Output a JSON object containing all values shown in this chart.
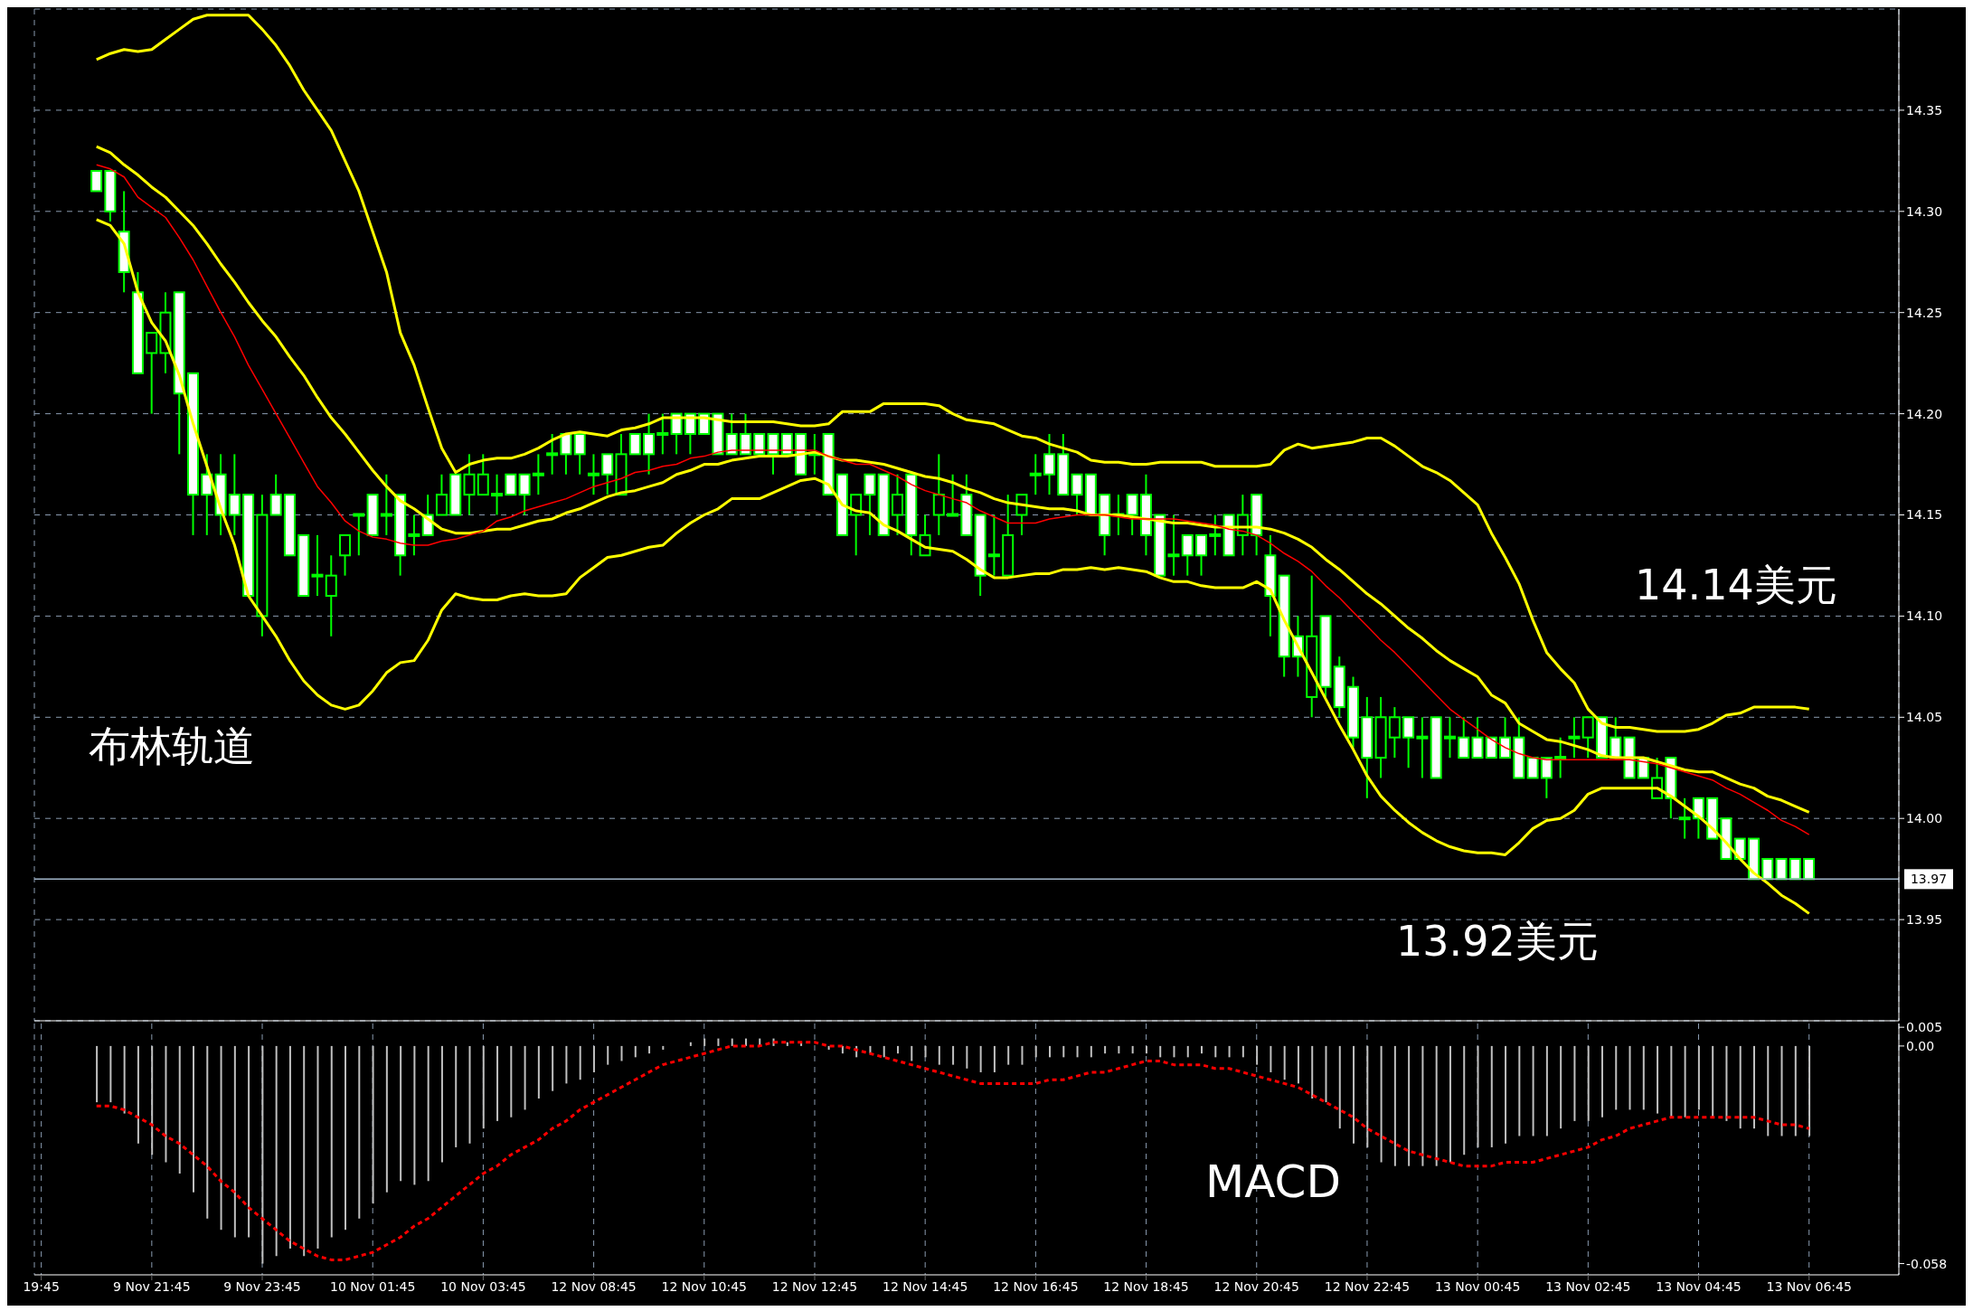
{
  "chart_data": [
    {
      "type": "candlestick",
      "categories": [
        null,
        null,
        null,
        null,
        null,
        null,
        null,
        null,
        null,
        null,
        null,
        null,
        null,
        null,
        null,
        null,
        null,
        null,
        null,
        null,
        null,
        null,
        null,
        null,
        null,
        null,
        null,
        null,
        null,
        null,
        null,
        null,
        null,
        null,
        null,
        null,
        null,
        null,
        null,
        null,
        null,
        null,
        null,
        null,
        null,
        null,
        null,
        null,
        null,
        null,
        null,
        null,
        null,
        null,
        null,
        null,
        null,
        null,
        null,
        null,
        null,
        null,
        null,
        null,
        null,
        null,
        null,
        null,
        null,
        null,
        null,
        null,
        null,
        null,
        null,
        null,
        null,
        null,
        null,
        null,
        null,
        null,
        null,
        null,
        null,
        null,
        null,
        null,
        null,
        null,
        null,
        null,
        null,
        null,
        null,
        null,
        null,
        null,
        null,
        null,
        null,
        null,
        null,
        null,
        null,
        null,
        null,
        null,
        null,
        null,
        null,
        null,
        null,
        null,
        null,
        null,
        null,
        null,
        null,
        null,
        null,
        null,
        null,
        null,
        null,
        null,
        null,
        null,
        null
      ],
      "ohlc": [
        null,
        null,
        null,
        null,
        [
          14.32,
          14.32,
          14.31,
          14.31
        ],
        [
          14.32,
          14.32,
          14.295,
          14.3
        ],
        [
          14.29,
          14.31,
          14.26,
          14.27
        ],
        [
          14.26,
          14.27,
          14.22,
          14.22
        ],
        [
          14.23,
          14.24,
          14.2,
          14.24
        ],
        [
          14.23,
          14.26,
          14.22,
          14.25
        ],
        [
          14.26,
          14.26,
          14.18,
          14.21
        ],
        [
          14.22,
          14.22,
          14.14,
          14.16
        ],
        [
          14.17,
          14.18,
          14.14,
          14.16
        ],
        [
          14.17,
          14.18,
          14.14,
          14.15
        ],
        [
          14.16,
          14.18,
          14.14,
          14.15
        ],
        [
          14.16,
          14.16,
          14.11,
          14.11
        ],
        [
          14.1,
          14.16,
          14.09,
          14.15
        ],
        [
          14.16,
          14.17,
          14.15,
          14.15
        ],
        [
          14.16,
          14.16,
          14.13,
          14.13
        ],
        [
          14.14,
          14.14,
          14.11,
          14.11
        ],
        [
          14.12,
          14.14,
          14.11,
          14.12
        ],
        [
          14.11,
          14.13,
          14.09,
          14.12
        ],
        [
          14.13,
          14.14,
          14.12,
          14.14
        ],
        [
          14.15,
          14.15,
          14.13,
          14.15
        ],
        [
          14.16,
          14.16,
          14.14,
          14.14
        ],
        [
          14.15,
          14.17,
          14.14,
          14.15
        ],
        [
          14.16,
          14.16,
          14.12,
          14.13
        ],
        [
          14.14,
          14.15,
          14.13,
          14.14
        ],
        [
          14.15,
          14.16,
          14.14,
          14.14
        ],
        [
          14.15,
          14.17,
          14.15,
          14.16
        ],
        [
          14.17,
          14.17,
          14.15,
          14.15
        ],
        [
          14.16,
          14.18,
          14.15,
          14.17
        ],
        [
          14.16,
          14.18,
          14.16,
          14.17
        ],
        [
          14.16,
          14.17,
          14.15,
          14.16
        ],
        [
          14.17,
          14.17,
          14.16,
          14.16
        ],
        [
          14.17,
          14.17,
          14.15,
          14.16
        ],
        [
          14.17,
          14.18,
          14.16,
          14.17
        ],
        [
          14.18,
          14.19,
          14.17,
          14.18
        ],
        [
          14.19,
          14.19,
          14.17,
          14.18
        ],
        [
          14.19,
          14.19,
          14.17,
          14.18
        ],
        [
          14.17,
          14.18,
          14.16,
          14.17
        ],
        [
          14.18,
          14.18,
          14.16,
          14.17
        ],
        [
          14.16,
          14.19,
          14.16,
          14.18
        ],
        [
          14.19,
          14.19,
          14.18,
          14.18
        ],
        [
          14.19,
          14.2,
          14.17,
          14.18
        ],
        [
          14.19,
          14.2,
          14.18,
          14.19
        ],
        [
          14.2,
          14.2,
          14.18,
          14.19
        ],
        [
          14.2,
          14.2,
          14.18,
          14.19
        ],
        [
          14.2,
          14.2,
          14.19,
          14.19
        ],
        [
          14.2,
          14.2,
          14.18,
          14.18
        ],
        [
          14.19,
          14.2,
          14.18,
          14.18
        ],
        [
          14.19,
          14.2,
          14.18,
          14.18
        ],
        [
          14.19,
          14.19,
          14.18,
          14.18
        ],
        [
          14.19,
          14.19,
          14.17,
          14.18
        ],
        [
          14.19,
          14.19,
          14.18,
          14.18
        ],
        [
          14.19,
          14.19,
          14.17,
          14.17
        ],
        [
          14.18,
          14.19,
          14.17,
          14.18
        ],
        [
          14.19,
          14.19,
          14.16,
          14.16
        ],
        [
          14.17,
          14.17,
          14.14,
          14.14
        ],
        [
          14.15,
          14.16,
          14.13,
          14.16
        ],
        [
          14.17,
          14.17,
          14.14,
          14.16
        ],
        [
          14.17,
          14.17,
          14.14,
          14.14
        ],
        [
          14.15,
          14.17,
          14.14,
          14.16
        ],
        [
          14.17,
          14.17,
          14.13,
          14.14
        ],
        [
          14.13,
          14.15,
          14.13,
          14.14
        ],
        [
          14.15,
          14.18,
          14.14,
          14.16
        ],
        [
          14.15,
          14.17,
          14.15,
          14.15
        ],
        [
          14.16,
          14.17,
          14.14,
          14.14
        ],
        [
          14.15,
          14.15,
          14.11,
          14.12
        ],
        [
          14.13,
          14.15,
          14.12,
          14.13
        ],
        [
          14.12,
          14.16,
          14.12,
          14.14
        ],
        [
          14.15,
          14.16,
          14.14,
          14.16
        ],
        [
          14.17,
          14.18,
          14.16,
          14.17
        ],
        [
          14.18,
          14.19,
          14.16,
          14.17
        ],
        [
          14.18,
          14.19,
          14.16,
          14.16
        ],
        [
          14.17,
          14.17,
          14.15,
          14.16
        ],
        [
          14.17,
          14.17,
          14.15,
          14.15
        ],
        [
          14.16,
          14.16,
          14.13,
          14.14
        ],
        [
          14.15,
          14.16,
          14.14,
          14.15
        ],
        [
          14.16,
          14.16,
          14.14,
          14.15
        ],
        [
          14.16,
          14.17,
          14.13,
          14.14
        ],
        [
          14.15,
          14.15,
          14.12,
          14.12
        ],
        [
          14.13,
          14.15,
          14.12,
          14.13
        ],
        [
          14.14,
          14.14,
          14.12,
          14.13
        ],
        [
          14.14,
          14.14,
          14.12,
          14.13
        ],
        [
          14.14,
          14.15,
          14.13,
          14.14
        ],
        [
          14.15,
          14.15,
          14.13,
          14.13
        ],
        [
          14.14,
          14.16,
          14.13,
          14.15
        ],
        [
          14.16,
          14.16,
          14.13,
          14.14
        ],
        [
          14.13,
          14.14,
          14.09,
          14.11
        ],
        [
          14.12,
          14.12,
          14.07,
          14.08
        ],
        [
          14.09,
          14.1,
          14.07,
          14.08
        ],
        [
          14.06,
          14.12,
          14.05,
          14.09
        ],
        [
          14.1,
          14.1,
          14.06,
          14.065
        ],
        [
          14.075,
          14.08,
          14.05,
          14.055
        ],
        [
          14.065,
          14.07,
          14.035,
          14.04
        ],
        [
          14.05,
          14.06,
          14.01,
          14.03
        ],
        [
          14.03,
          14.06,
          14.02,
          14.05
        ],
        [
          14.04,
          14.055,
          14.03,
          14.05
        ],
        [
          14.05,
          14.05,
          14.025,
          14.04
        ],
        [
          14.04,
          14.05,
          14.02,
          14.04
        ],
        [
          14.05,
          14.05,
          14.02,
          14.02
        ],
        [
          14.04,
          14.05,
          14.03,
          14.04
        ],
        [
          14.04,
          14.05,
          14.03,
          14.03
        ],
        [
          14.04,
          14.05,
          14.03,
          14.03
        ],
        [
          14.04,
          14.04,
          14.03,
          14.03
        ],
        [
          14.04,
          14.05,
          14.03,
          14.03
        ],
        [
          14.04,
          14.05,
          14.02,
          14.02
        ],
        [
          14.03,
          14.03,
          14.02,
          14.02
        ],
        [
          14.03,
          14.03,
          14.01,
          14.02
        ],
        [
          14.03,
          14.04,
          14.02,
          14.03
        ],
        [
          14.04,
          14.05,
          14.03,
          14.04
        ],
        [
          14.04,
          14.05,
          14.03,
          14.05
        ],
        [
          14.05,
          14.05,
          14.03,
          14.03
        ],
        [
          14.04,
          14.05,
          14.03,
          14.03
        ],
        [
          14.04,
          14.04,
          14.02,
          14.02
        ],
        [
          14.03,
          14.03,
          14.02,
          14.02
        ],
        [
          14.01,
          14.03,
          14.01,
          14.02
        ],
        [
          14.03,
          14.03,
          14.0,
          14.01
        ],
        [
          14.0,
          14.01,
          13.99,
          14.0
        ],
        [
          14.01,
          14.01,
          13.99,
          14.0
        ],
        [
          14.01,
          14.01,
          13.99,
          13.99
        ],
        [
          14.0,
          14.0,
          13.98,
          13.98
        ],
        [
          13.99,
          13.99,
          13.98,
          13.98
        ],
        [
          13.99,
          13.99,
          13.97,
          13.97
        ],
        [
          13.98,
          13.98,
          13.97,
          13.97
        ],
        [
          13.98,
          13.98,
          13.97,
          13.97
        ],
        [
          13.98,
          13.98,
          13.97,
          13.97
        ],
        [
          13.98,
          13.98,
          13.97,
          13.97
        ]
      ],
      "color": "#00ff00",
      "series": [
        {
          "type": "line",
          "color": "#ffff00",
          "values": [
            null,
            null,
            null,
            null,
            14.375,
            14.378,
            14.38,
            14.379,
            14.38,
            14.385,
            14.39,
            14.395,
            14.397,
            14.397,
            14.397,
            14.397,
            14.39,
            14.382,
            14.372,
            14.36,
            14.35,
            14.34,
            14.325,
            14.31,
            14.29,
            14.27,
            14.24,
            14.224,
            14.203,
            14.183,
            14.171,
            14.175,
            14.177,
            14.178,
            14.178,
            14.18,
            14.183,
            14.187,
            14.19,
            14.191,
            14.19,
            14.189,
            14.192,
            14.193,
            14.195,
            14.198,
            14.198,
            14.198,
            14.198,
            14.197,
            14.196,
            14.196,
            14.196,
            14.196,
            14.195,
            14.194,
            14.194,
            14.195,
            14.201,
            14.201,
            14.201,
            14.205,
            14.205,
            14.205,
            14.205,
            14.204,
            14.2,
            14.197,
            14.196,
            14.195,
            14.192,
            14.189,
            14.188,
            14.185,
            14.183,
            14.181,
            14.177,
            14.176,
            14.176,
            14.175,
            14.175,
            14.176,
            14.176,
            14.176,
            14.176,
            14.174,
            14.174,
            14.174,
            14.174,
            14.175,
            14.182,
            14.185,
            14.183,
            14.184,
            14.185,
            14.186,
            14.188,
            14.188,
            14.184,
            14.179,
            14.174,
            14.171,
            14.167,
            14.161,
            14.155,
            14.141,
            14.129,
            14.116,
            14.098,
            14.082,
            14.074,
            14.067,
            14.054,
            14.047,
            14.045,
            14.045,
            14.044,
            14.043,
            14.043,
            14.043,
            14.044,
            14.047,
            14.051,
            14.052,
            14.055,
            14.055,
            14.055,
            14.055,
            14.054
          ]
        },
        {
          "type": "line",
          "color": "#ffff00",
          "values": [
            null,
            null,
            null,
            null,
            14.332,
            14.329,
            14.323,
            14.318,
            14.312,
            14.307,
            14.3,
            14.293,
            14.284,
            14.274,
            14.265,
            14.255,
            14.246,
            14.238,
            14.228,
            14.219,
            14.208,
            14.198,
            14.19,
            14.181,
            14.172,
            14.164,
            14.157,
            14.153,
            14.148,
            14.143,
            14.141,
            14.141,
            14.142,
            14.143,
            14.143,
            14.145,
            14.147,
            14.148,
            14.151,
            14.153,
            14.156,
            14.159,
            14.161,
            14.162,
            14.164,
            14.166,
            14.17,
            14.172,
            14.175,
            14.175,
            14.177,
            14.178,
            14.179,
            14.179,
            14.179,
            14.18,
            14.181,
            14.179,
            14.177,
            14.177,
            14.176,
            14.175,
            14.173,
            14.171,
            14.169,
            14.168,
            14.166,
            14.163,
            14.161,
            14.158,
            14.156,
            14.155,
            14.154,
            14.153,
            14.153,
            14.152,
            14.15,
            14.15,
            14.15,
            14.149,
            14.148,
            14.147,
            14.146,
            14.146,
            14.145,
            14.144,
            14.144,
            14.144,
            14.144,
            14.143,
            14.141,
            14.138,
            14.134,
            14.128,
            14.123,
            14.117,
            14.111,
            14.106,
            14.1,
            14.094,
            14.089,
            14.083,
            14.078,
            14.074,
            14.07,
            14.061,
            14.057,
            14.047,
            14.043,
            14.039,
            14.038,
            14.036,
            14.034,
            14.031,
            14.03,
            14.03,
            14.03,
            14.028,
            14.026,
            14.024,
            14.023,
            14.023,
            14.02,
            14.017,
            14.015,
            14.011,
            14.009,
            14.006,
            14.003
          ]
        },
        {
          "type": "line",
          "color": "#ffff00",
          "values": [
            null,
            null,
            null,
            null,
            14.296,
            14.293,
            14.284,
            14.26,
            14.245,
            14.236,
            14.219,
            14.195,
            14.174,
            14.153,
            14.135,
            14.11,
            14.1,
            14.09,
            14.078,
            14.068,
            14.061,
            14.056,
            14.054,
            14.056,
            14.063,
            14.072,
            14.077,
            14.078,
            14.088,
            14.103,
            14.111,
            14.109,
            14.108,
            14.108,
            14.11,
            14.111,
            14.11,
            14.11,
            14.111,
            14.119,
            14.124,
            14.129,
            14.13,
            14.132,
            14.134,
            14.135,
            14.141,
            14.146,
            14.15,
            14.153,
            14.158,
            14.158,
            14.158,
            14.161,
            14.164,
            14.167,
            14.168,
            14.165,
            14.155,
            14.152,
            14.151,
            14.145,
            14.142,
            14.138,
            14.134,
            14.133,
            14.132,
            14.128,
            14.123,
            14.119,
            14.119,
            14.12,
            14.121,
            14.121,
            14.123,
            14.123,
            14.124,
            14.123,
            14.124,
            14.123,
            14.122,
            14.119,
            14.117,
            14.117,
            14.115,
            14.114,
            14.114,
            14.114,
            14.117,
            14.113,
            14.098,
            14.085,
            14.072,
            14.059,
            14.046,
            14.034,
            14.021,
            14.011,
            14.004,
            13.998,
            13.993,
            13.989,
            13.986,
            13.984,
            13.983,
            13.983,
            13.982,
            13.988,
            13.995,
            13.999,
            14.0,
            14.004,
            14.012,
            14.015,
            14.015,
            14.015,
            14.015,
            14.015,
            14.011,
            14.006,
            14.001,
            13.995,
            13.988,
            13.98,
            13.973,
            13.968,
            13.962,
            13.958,
            13.953
          ]
        },
        {
          "type": "line",
          "color": "#ff0000",
          "values": [
            null,
            null,
            null,
            null,
            14.323,
            14.321,
            14.317,
            14.307,
            14.302,
            14.297,
            14.287,
            14.276,
            14.263,
            14.25,
            14.238,
            14.224,
            14.212,
            14.2,
            14.188,
            14.176,
            14.164,
            14.156,
            14.147,
            14.142,
            14.139,
            14.138,
            14.136,
            14.135,
            14.135,
            14.137,
            14.138,
            14.14,
            14.142,
            14.147,
            14.149,
            14.152,
            14.154,
            14.156,
            14.158,
            14.161,
            14.164,
            14.166,
            14.168,
            14.171,
            14.172,
            14.174,
            14.175,
            14.178,
            14.179,
            14.181,
            14.182,
            14.182,
            14.182,
            14.182,
            14.182,
            14.182,
            14.182,
            14.179,
            14.177,
            14.175,
            14.175,
            14.172,
            14.169,
            14.165,
            14.162,
            14.16,
            14.158,
            14.156,
            14.152,
            14.149,
            14.146,
            14.146,
            14.146,
            14.148,
            14.149,
            14.15,
            14.15,
            14.15,
            14.149,
            14.148,
            14.148,
            14.148,
            14.148,
            14.147,
            14.146,
            14.145,
            14.143,
            14.142,
            14.14,
            14.136,
            14.131,
            14.127,
            14.122,
            14.115,
            14.109,
            14.102,
            14.095,
            14.088,
            14.082,
            14.075,
            14.068,
            14.061,
            14.054,
            14.049,
            14.044,
            14.039,
            14.035,
            14.032,
            14.03,
            14.029,
            14.029,
            14.029,
            14.029,
            14.029,
            14.029,
            14.029,
            14.028,
            14.027,
            14.025,
            14.023,
            14.021,
            14.019,
            14.015,
            14.012,
            14.008,
            14.004,
            13.999,
            13.996,
            13.992
          ]
        }
      ],
      "ylim": [
        13.9,
        14.4
      ],
      "yticks": [
        {
          "value": 13.95,
          "label": "13.95"
        },
        {
          "value": 14.0,
          "label": "14.00"
        },
        {
          "value": 14.05,
          "label": "14.05"
        },
        {
          "value": 14.1,
          "label": "14.10"
        },
        {
          "value": 14.15,
          "label": "14.15"
        },
        {
          "value": 14.2,
          "label": "14.20"
        },
        {
          "value": 14.25,
          "label": "14.25"
        },
        {
          "value": 14.3,
          "label": "14.30"
        },
        {
          "value": 14.35,
          "label": "14.35"
        }
      ],
      "grid": true,
      "tick_labels": "y",
      "ref_lines": [
        {
          "axis": "y",
          "value": 13.97,
          "label": "13.97",
          "color": "#a0b4c8"
        }
      ],
      "annotations": [
        "布林轨道",
        "14.14美元",
        "13.92美元"
      ]
    },
    {
      "type": "bar",
      "categories": [
        "19:45",
        null,
        null,
        null,
        null,
        null,
        null,
        null,
        "9 Nov 21:45",
        null,
        null,
        null,
        null,
        null,
        null,
        null,
        "9 Nov 23:45",
        null,
        null,
        null,
        null,
        null,
        null,
        null,
        "10 Nov 01:45",
        null,
        null,
        null,
        null,
        null,
        null,
        null,
        "10 Nov 03:45",
        null,
        null,
        null,
        null,
        null,
        null,
        null,
        "12 Nov 08:45",
        null,
        null,
        null,
        null,
        null,
        null,
        null,
        "12 Nov 10:45",
        null,
        null,
        null,
        null,
        null,
        null,
        null,
        "12 Nov 12:45",
        null,
        null,
        null,
        null,
        null,
        null,
        null,
        "12 Nov 14:45",
        null,
        null,
        null,
        null,
        null,
        null,
        null,
        "12 Nov 16:45",
        null,
        null,
        null,
        null,
        null,
        null,
        null,
        "12 Nov 18:45",
        null,
        null,
        null,
        null,
        null,
        null,
        null,
        "12 Nov 20:45",
        null,
        null,
        null,
        null,
        null,
        null,
        null,
        "12 Nov 22:45",
        null,
        null,
        null,
        null,
        null,
        null,
        null,
        "13 Nov 00:45",
        null,
        null,
        null,
        null,
        null,
        null,
        null,
        "13 Nov 02:45",
        null,
        null,
        null,
        null,
        null,
        null,
        null,
        "13 Nov 04:45",
        null,
        null,
        null,
        null,
        null,
        null,
        null,
        "13 Nov 06:45"
      ],
      "series": [
        {
          "type": "bar",
          "color": "#c0c0c0",
          "values": [
            null,
            null,
            null,
            null,
            -0.015,
            -0.015,
            -0.018,
            -0.026,
            -0.029,
            -0.031,
            -0.034,
            -0.039,
            -0.046,
            -0.049,
            -0.051,
            -0.051,
            -0.058,
            -0.056,
            -0.054,
            -0.056,
            -0.054,
            -0.051,
            -0.049,
            -0.046,
            -0.042,
            -0.039,
            -0.036,
            -0.037,
            -0.036,
            -0.031,
            -0.027,
            -0.026,
            -0.022,
            -0.02,
            -0.019,
            -0.017,
            -0.014,
            -0.012,
            -0.01,
            -0.009,
            -0.007,
            -0.005,
            -0.004,
            -0.003,
            -0.002,
            -0.001,
            0.0,
            0.001,
            0.002,
            0.002,
            0.002,
            0.002,
            0.002,
            0.002,
            0.001,
            0.001,
            0.0,
            -0.001,
            -0.002,
            -0.003,
            -0.002,
            -0.003,
            -0.002,
            -0.004,
            -0.003,
            -0.005,
            -0.005,
            -0.006,
            -0.007,
            -0.007,
            -0.005,
            -0.005,
            -0.003,
            -0.003,
            -0.003,
            -0.003,
            -0.003,
            -0.002,
            -0.002,
            -0.002,
            -0.002,
            -0.003,
            -0.003,
            -0.003,
            -0.002,
            -0.003,
            -0.003,
            -0.003,
            -0.005,
            -0.007,
            -0.009,
            -0.01,
            -0.014,
            -0.015,
            -0.022,
            -0.026,
            -0.027,
            -0.031,
            -0.032,
            -0.032,
            -0.032,
            -0.032,
            -0.031,
            -0.029,
            -0.027,
            -0.027,
            -0.026,
            -0.024,
            -0.024,
            -0.024,
            -0.022,
            -0.02,
            -0.02,
            -0.019,
            -0.017,
            -0.017,
            -0.017,
            -0.018,
            -0.019,
            -0.019,
            -0.017,
            -0.019,
            -0.02,
            -0.022,
            -0.022,
            -0.024,
            -0.024,
            -0.024,
            -0.024
          ]
        },
        {
          "type": "line",
          "color": "#ff0000",
          "line_style": "dashed",
          "values": [
            null,
            null,
            null,
            null,
            -0.016,
            -0.016,
            -0.017,
            -0.019,
            -0.021,
            -0.024,
            -0.026,
            -0.029,
            -0.032,
            -0.036,
            -0.039,
            -0.043,
            -0.046,
            -0.049,
            -0.052,
            -0.054,
            -0.056,
            -0.057,
            -0.057,
            -0.056,
            -0.055,
            -0.053,
            -0.051,
            -0.048,
            -0.046,
            -0.043,
            -0.04,
            -0.037,
            -0.034,
            -0.032,
            -0.029,
            -0.027,
            -0.025,
            -0.022,
            -0.02,
            -0.017,
            -0.015,
            -0.013,
            -0.011,
            -0.009,
            -0.007,
            -0.005,
            -0.004,
            -0.003,
            -0.002,
            -0.001,
            0.0,
            0.0,
            0.0,
            0.001,
            0.001,
            0.001,
            0.001,
            0.0,
            0.0,
            -0.001,
            -0.002,
            -0.003,
            -0.004,
            -0.005,
            -0.006,
            -0.007,
            -0.008,
            -0.009,
            -0.01,
            -0.01,
            -0.01,
            -0.01,
            -0.01,
            -0.009,
            -0.009,
            -0.008,
            -0.007,
            -0.007,
            -0.006,
            -0.005,
            -0.004,
            -0.004,
            -0.005,
            -0.005,
            -0.005,
            -0.006,
            -0.006,
            -0.007,
            -0.008,
            -0.009,
            -0.01,
            -0.011,
            -0.013,
            -0.015,
            -0.017,
            -0.019,
            -0.022,
            -0.024,
            -0.026,
            -0.028,
            -0.029,
            -0.03,
            -0.031,
            -0.032,
            -0.032,
            -0.032,
            -0.031,
            -0.031,
            -0.031,
            -0.03,
            -0.029,
            -0.028,
            -0.027,
            -0.025,
            -0.024,
            -0.022,
            -0.021,
            -0.02,
            -0.019,
            -0.019,
            -0.019,
            -0.019,
            -0.019,
            -0.019,
            -0.019,
            -0.02,
            -0.021,
            -0.021,
            -0.022
          ]
        }
      ],
      "ylim": [
        -0.061,
        0.006
      ],
      "yticks": [
        {
          "value": 0.005,
          "label": "0.005"
        },
        {
          "value": 0,
          "label": "0.00"
        },
        {
          "value": -0.058,
          "label": "-0.058"
        }
      ],
      "grid": "x",
      "annotations": [
        "MACD"
      ]
    }
  ]
}
